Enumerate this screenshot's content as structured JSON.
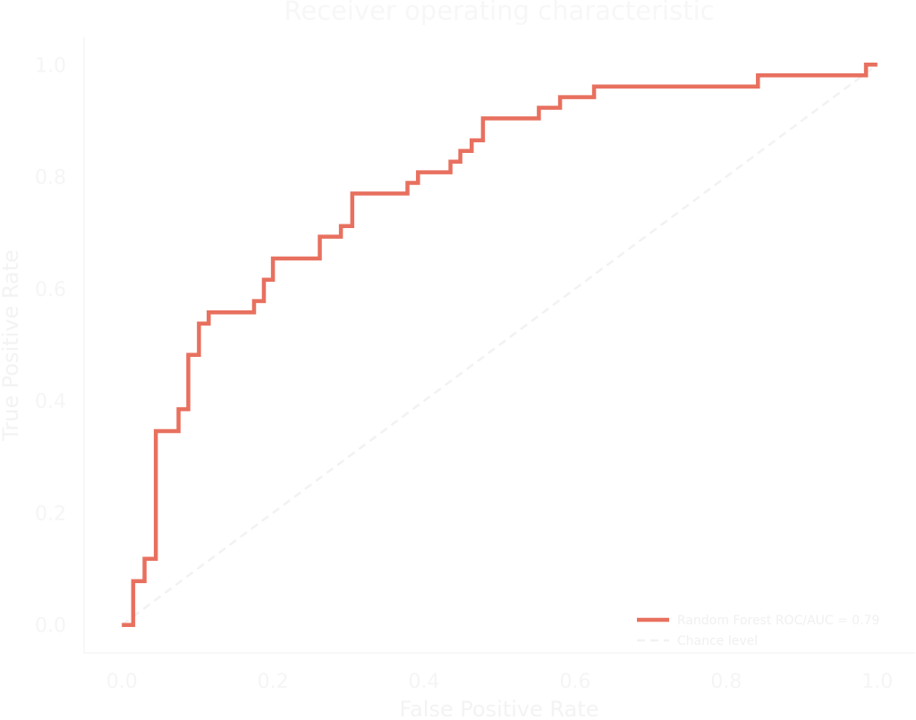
{
  "chart_data": {
    "type": "line",
    "title": "Receiver operating characteristic",
    "xlabel": "False Positive Rate",
    "ylabel": "True Positive Rate",
    "xlim": [
      -0.05,
      1.05
    ],
    "ylim": [
      -0.05,
      1.05
    ],
    "xticks": [
      "0.0",
      "0.2",
      "0.4",
      "0.6",
      "0.8",
      "1.0"
    ],
    "yticks": [
      "0.0",
      "0.2",
      "0.4",
      "0.6",
      "0.8",
      "1.0"
    ],
    "grid": false,
    "legend_position": "bottom-right",
    "colors": {
      "roc": "#e8705f",
      "chance": "#f2f2f2",
      "text": "#f3f3f3",
      "spine": "#f5f5f5"
    },
    "series": [
      {
        "name": "Random Forest ROC/AUC = 0.79",
        "style": "solid",
        "points": [
          [
            0.0,
            0.0
          ],
          [
            0.015,
            0.0
          ],
          [
            0.015,
            0.078
          ],
          [
            0.03,
            0.078
          ],
          [
            0.03,
            0.118
          ],
          [
            0.045,
            0.118
          ],
          [
            0.045,
            0.346
          ],
          [
            0.075,
            0.346
          ],
          [
            0.075,
            0.385
          ],
          [
            0.088,
            0.385
          ],
          [
            0.088,
            0.482
          ],
          [
            0.102,
            0.482
          ],
          [
            0.102,
            0.538
          ],
          [
            0.115,
            0.538
          ],
          [
            0.115,
            0.558
          ],
          [
            0.175,
            0.558
          ],
          [
            0.175,
            0.578
          ],
          [
            0.188,
            0.578
          ],
          [
            0.188,
            0.616
          ],
          [
            0.2,
            0.616
          ],
          [
            0.2,
            0.654
          ],
          [
            0.262,
            0.654
          ],
          [
            0.262,
            0.693
          ],
          [
            0.29,
            0.693
          ],
          [
            0.29,
            0.712
          ],
          [
            0.305,
            0.712
          ],
          [
            0.305,
            0.77
          ],
          [
            0.378,
            0.77
          ],
          [
            0.378,
            0.789
          ],
          [
            0.392,
            0.789
          ],
          [
            0.392,
            0.808
          ],
          [
            0.435,
            0.808
          ],
          [
            0.435,
            0.827
          ],
          [
            0.448,
            0.827
          ],
          [
            0.448,
            0.846
          ],
          [
            0.463,
            0.846
          ],
          [
            0.463,
            0.865
          ],
          [
            0.478,
            0.865
          ],
          [
            0.478,
            0.904
          ],
          [
            0.552,
            0.904
          ],
          [
            0.552,
            0.923
          ],
          [
            0.58,
            0.923
          ],
          [
            0.58,
            0.942
          ],
          [
            0.625,
            0.942
          ],
          [
            0.625,
            0.961
          ],
          [
            0.842,
            0.961
          ],
          [
            0.842,
            0.981
          ],
          [
            0.985,
            0.981
          ],
          [
            0.985,
            1.0
          ],
          [
            1.0,
            1.0
          ]
        ]
      },
      {
        "name": "Chance level",
        "style": "dashed",
        "points": [
          [
            0,
            0
          ],
          [
            1,
            1
          ]
        ]
      }
    ]
  }
}
